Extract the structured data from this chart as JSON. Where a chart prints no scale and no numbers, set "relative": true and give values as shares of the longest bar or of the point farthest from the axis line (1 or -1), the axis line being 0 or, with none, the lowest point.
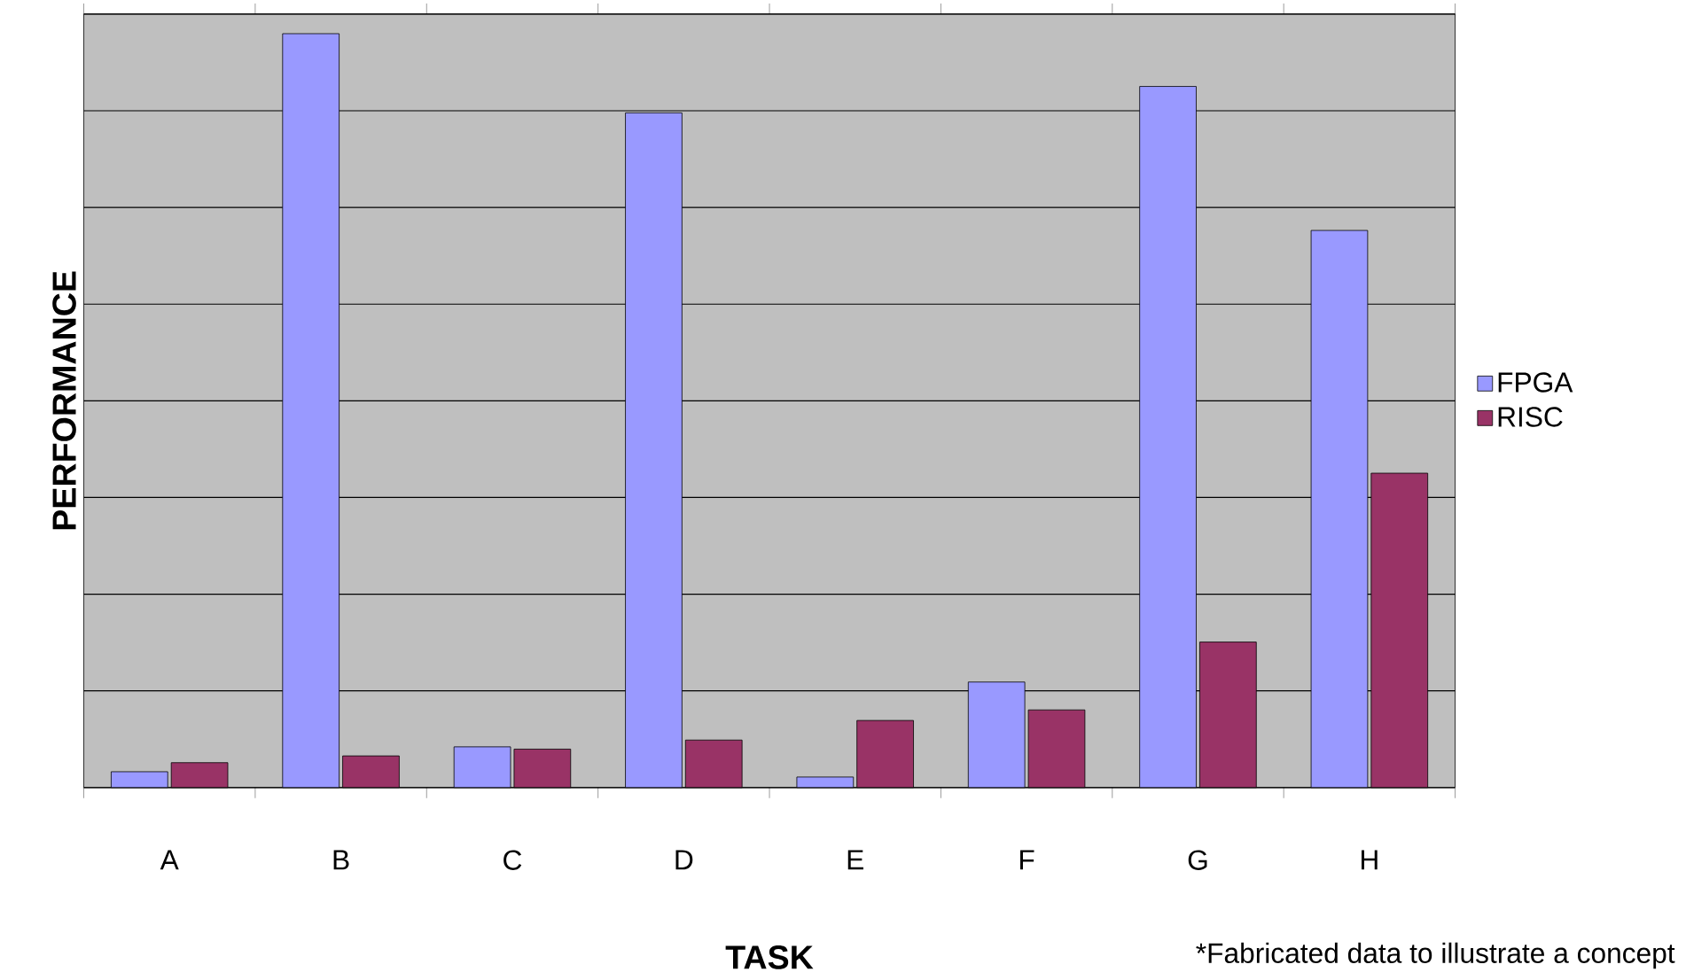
{
  "chart_data": {
    "type": "bar",
    "relative": true,
    "xlabel": "TASK",
    "ylabel": "PERFORMANCE",
    "categories": [
      "A",
      "B",
      "C",
      "D",
      "E",
      "F",
      "G",
      "H"
    ],
    "series": [
      {
        "name": "FPGA",
        "color": "#9999ff",
        "values": [
          0.021,
          1,
          0.054,
          0.895,
          0.014,
          0.14,
          0.93,
          0.739
        ]
      },
      {
        "name": "RISC",
        "color": "#993366",
        "values": [
          0.033,
          0.042,
          0.051,
          0.063,
          0.089,
          0.103,
          0.193,
          0.417
        ]
      }
    ],
    "grid": "y",
    "legend": "right",
    "annotations": [
      "*Fabricated data to illustrate a concept"
    ]
  }
}
